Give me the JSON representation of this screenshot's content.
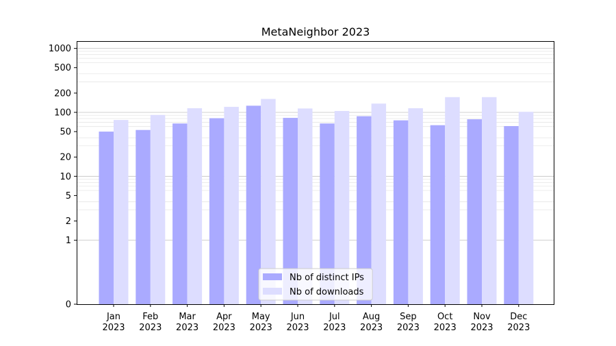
{
  "chart_data": {
    "type": "bar",
    "title": "MetaNeighbor 2023",
    "xlabel": "",
    "ylabel": "",
    "yscale": "symlog",
    "ylim": [
      0,
      1300
    ],
    "y_ticks": [
      0,
      1,
      2,
      5,
      10,
      20,
      50,
      100,
      200,
      500,
      1000
    ],
    "y_tick_labels": [
      "0",
      "1",
      "2",
      "5",
      "10",
      "20",
      "50",
      "100",
      "200",
      "500",
      "1000"
    ],
    "categories": [
      [
        "Jan",
        "2023"
      ],
      [
        "Feb",
        "2023"
      ],
      [
        "Mar",
        "2023"
      ],
      [
        "Apr",
        "2023"
      ],
      [
        "May",
        "2023"
      ],
      [
        "Jun",
        "2023"
      ],
      [
        "Jul",
        "2023"
      ],
      [
        "Aug",
        "2023"
      ],
      [
        "Sep",
        "2023"
      ],
      [
        "Oct",
        "2023"
      ],
      [
        "Nov",
        "2023"
      ],
      [
        "Dec",
        "2023"
      ]
    ],
    "series": [
      {
        "name": "Nb of distinct IPs",
        "color": "#aaaaff",
        "values": [
          50,
          53,
          67,
          81,
          127,
          82,
          67,
          87,
          75,
          63,
          78,
          61
        ]
      },
      {
        "name": "Nb of downloads",
        "color": "#ddddff",
        "values": [
          76,
          91,
          116,
          122,
          162,
          115,
          105,
          137,
          116,
          173,
          173,
          102
        ]
      }
    ],
    "grid": "y-major-and-minor",
    "legend_position": "lower center"
  }
}
